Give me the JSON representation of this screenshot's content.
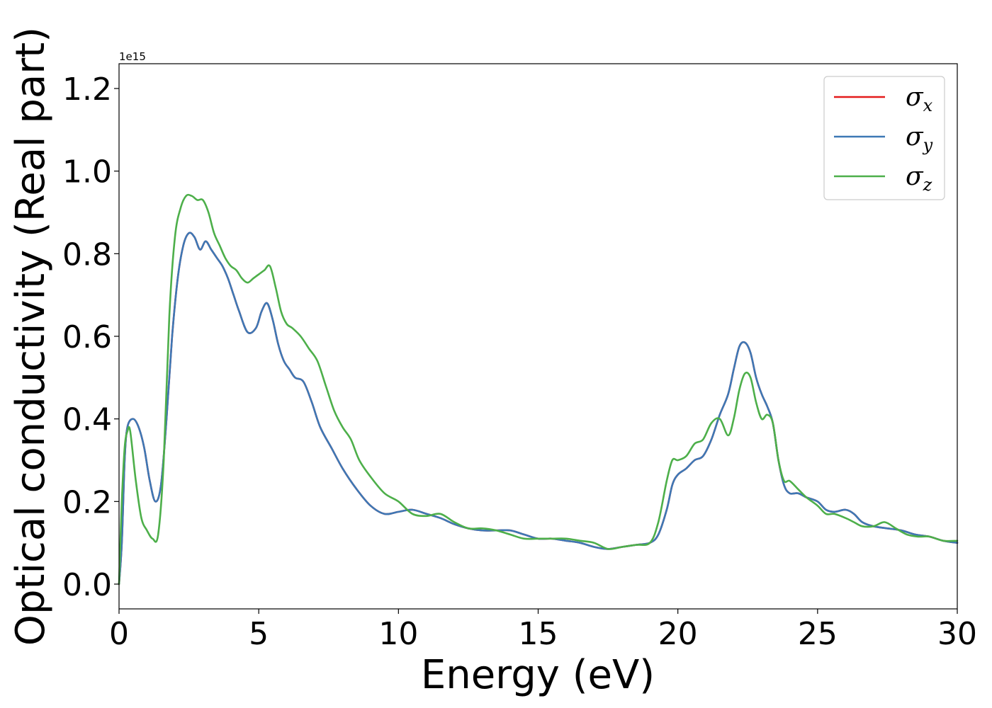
{
  "chart_data": {
    "type": "line",
    "xlabel": "Energy (eV)",
    "ylabel": "Optical conductivity (Real part)",
    "y_offset_label": "1e15",
    "xlim": [
      0,
      30
    ],
    "ylim": [
      -0.06,
      1.26
    ],
    "x_ticks": [
      "0",
      "5",
      "10",
      "15",
      "20",
      "25",
      "30"
    ],
    "y_ticks": [
      "0.0",
      "0.2",
      "0.4",
      "0.6",
      "0.8",
      "1.0",
      "1.2"
    ],
    "x_tick_values": [
      0,
      5,
      10,
      15,
      20,
      25,
      30
    ],
    "y_tick_values": [
      0.0,
      0.2,
      0.4,
      0.6,
      0.8,
      1.0,
      1.2
    ],
    "legend_position": "upper right",
    "grid": false,
    "series": [
      {
        "name": "σx",
        "symbol": "σ",
        "subscript": "x",
        "color": "#e41a1c",
        "x": [
          0,
          0.1,
          0.2,
          0.3,
          0.5,
          0.7,
          0.9,
          1.1,
          1.3,
          1.5,
          1.7,
          1.9,
          2.1,
          2.3,
          2.5,
          2.7,
          2.9,
          3.1,
          3.3,
          3.5,
          3.7,
          3.9,
          4.1,
          4.3,
          4.6,
          4.9,
          5.1,
          5.3,
          5.5,
          5.7,
          5.9,
          6.1,
          6.3,
          6.6,
          6.9,
          7.2,
          7.6,
          8.0,
          8.5,
          9.0,
          9.5,
          10.0,
          10.5,
          11.0,
          11.5,
          12.0,
          12.5,
          13.0,
          13.5,
          14.0,
          14.5,
          15.0,
          15.5,
          16.0,
          16.5,
          17.0,
          17.5,
          18.0,
          18.5,
          19.0,
          19.3,
          19.6,
          19.8,
          20.0,
          20.3,
          20.6,
          20.9,
          21.2,
          21.5,
          21.8,
          22.0,
          22.2,
          22.4,
          22.6,
          22.8,
          23.0,
          23.2,
          23.4,
          23.6,
          23.8,
          24.0,
          24.3,
          24.6,
          25.0,
          25.3,
          25.6,
          26.0,
          26.3,
          26.6,
          27.0,
          27.5,
          28.0,
          28.5,
          29.0,
          29.5,
          30.0
        ],
        "y": [
          0.0,
          0.1,
          0.3,
          0.38,
          0.4,
          0.38,
          0.33,
          0.25,
          0.2,
          0.24,
          0.4,
          0.6,
          0.74,
          0.82,
          0.85,
          0.84,
          0.81,
          0.83,
          0.81,
          0.79,
          0.77,
          0.74,
          0.7,
          0.66,
          0.61,
          0.62,
          0.66,
          0.68,
          0.64,
          0.58,
          0.54,
          0.52,
          0.5,
          0.49,
          0.44,
          0.38,
          0.33,
          0.28,
          0.23,
          0.19,
          0.17,
          0.175,
          0.18,
          0.17,
          0.16,
          0.145,
          0.135,
          0.13,
          0.13,
          0.13,
          0.12,
          0.11,
          0.11,
          0.105,
          0.1,
          0.09,
          0.085,
          0.09,
          0.095,
          0.1,
          0.12,
          0.18,
          0.24,
          0.265,
          0.28,
          0.3,
          0.31,
          0.35,
          0.41,
          0.46,
          0.52,
          0.575,
          0.585,
          0.56,
          0.5,
          0.46,
          0.43,
          0.39,
          0.3,
          0.24,
          0.22,
          0.22,
          0.21,
          0.2,
          0.18,
          0.175,
          0.18,
          0.17,
          0.15,
          0.14,
          0.135,
          0.13,
          0.12,
          0.115,
          0.105,
          0.1
        ]
      },
      {
        "name": "σy",
        "symbol": "σ",
        "subscript": "y",
        "color": "#3d78b5",
        "x": [
          0,
          0.1,
          0.2,
          0.3,
          0.5,
          0.7,
          0.9,
          1.1,
          1.3,
          1.5,
          1.7,
          1.9,
          2.1,
          2.3,
          2.5,
          2.7,
          2.9,
          3.1,
          3.3,
          3.5,
          3.7,
          3.9,
          4.1,
          4.3,
          4.6,
          4.9,
          5.1,
          5.3,
          5.5,
          5.7,
          5.9,
          6.1,
          6.3,
          6.6,
          6.9,
          7.2,
          7.6,
          8.0,
          8.5,
          9.0,
          9.5,
          10.0,
          10.5,
          11.0,
          11.5,
          12.0,
          12.5,
          13.0,
          13.5,
          14.0,
          14.5,
          15.0,
          15.5,
          16.0,
          16.5,
          17.0,
          17.5,
          18.0,
          18.5,
          19.0,
          19.3,
          19.6,
          19.8,
          20.0,
          20.3,
          20.6,
          20.9,
          21.2,
          21.5,
          21.8,
          22.0,
          22.2,
          22.4,
          22.6,
          22.8,
          23.0,
          23.2,
          23.4,
          23.6,
          23.8,
          24.0,
          24.3,
          24.6,
          25.0,
          25.3,
          25.6,
          26.0,
          26.3,
          26.6,
          27.0,
          27.5,
          28.0,
          28.5,
          29.0,
          29.5,
          30.0
        ],
        "y": [
          0.0,
          0.1,
          0.3,
          0.38,
          0.4,
          0.38,
          0.33,
          0.25,
          0.2,
          0.24,
          0.4,
          0.6,
          0.74,
          0.82,
          0.85,
          0.84,
          0.81,
          0.83,
          0.81,
          0.79,
          0.77,
          0.74,
          0.7,
          0.66,
          0.61,
          0.62,
          0.66,
          0.68,
          0.64,
          0.58,
          0.54,
          0.52,
          0.5,
          0.49,
          0.44,
          0.38,
          0.33,
          0.28,
          0.23,
          0.19,
          0.17,
          0.175,
          0.18,
          0.17,
          0.16,
          0.145,
          0.135,
          0.13,
          0.13,
          0.13,
          0.12,
          0.11,
          0.11,
          0.105,
          0.1,
          0.09,
          0.085,
          0.09,
          0.095,
          0.1,
          0.12,
          0.18,
          0.24,
          0.265,
          0.28,
          0.3,
          0.31,
          0.35,
          0.41,
          0.46,
          0.52,
          0.575,
          0.585,
          0.56,
          0.5,
          0.46,
          0.43,
          0.39,
          0.3,
          0.24,
          0.22,
          0.22,
          0.21,
          0.2,
          0.18,
          0.175,
          0.18,
          0.17,
          0.15,
          0.14,
          0.135,
          0.13,
          0.12,
          0.115,
          0.105,
          0.1
        ]
      },
      {
        "name": "σz",
        "symbol": "σ",
        "subscript": "z",
        "color": "#4daf4a",
        "x": [
          0,
          0.1,
          0.2,
          0.3,
          0.4,
          0.6,
          0.8,
          1.0,
          1.2,
          1.4,
          1.6,
          1.8,
          2.0,
          2.2,
          2.4,
          2.6,
          2.8,
          3.0,
          3.2,
          3.4,
          3.6,
          3.8,
          4.0,
          4.2,
          4.4,
          4.6,
          4.8,
          5.0,
          5.2,
          5.4,
          5.6,
          5.8,
          6.0,
          6.2,
          6.5,
          6.8,
          7.1,
          7.4,
          7.7,
          8.0,
          8.3,
          8.6,
          9.0,
          9.5,
          10.0,
          10.5,
          11.0,
          11.5,
          12.0,
          12.5,
          13.0,
          13.5,
          14.0,
          14.5,
          15.0,
          15.5,
          16.0,
          16.5,
          17.0,
          17.5,
          18.0,
          18.5,
          19.0,
          19.3,
          19.6,
          19.8,
          20.0,
          20.3,
          20.6,
          20.9,
          21.2,
          21.5,
          21.8,
          22.0,
          22.2,
          22.4,
          22.6,
          22.8,
          23.0,
          23.2,
          23.4,
          23.6,
          23.8,
          24.0,
          24.3,
          24.6,
          25.0,
          25.3,
          25.6,
          26.0,
          26.3,
          26.6,
          27.0,
          27.4,
          27.8,
          28.2,
          28.6,
          29.0,
          29.5,
          30.0
        ],
        "y": [
          0.0,
          0.2,
          0.33,
          0.37,
          0.37,
          0.25,
          0.16,
          0.13,
          0.11,
          0.12,
          0.3,
          0.65,
          0.84,
          0.91,
          0.94,
          0.94,
          0.93,
          0.93,
          0.9,
          0.85,
          0.82,
          0.79,
          0.77,
          0.76,
          0.74,
          0.73,
          0.74,
          0.75,
          0.76,
          0.77,
          0.72,
          0.66,
          0.63,
          0.62,
          0.6,
          0.57,
          0.54,
          0.48,
          0.42,
          0.38,
          0.35,
          0.3,
          0.26,
          0.22,
          0.2,
          0.17,
          0.165,
          0.17,
          0.15,
          0.135,
          0.135,
          0.13,
          0.12,
          0.11,
          0.11,
          0.11,
          0.11,
          0.105,
          0.1,
          0.085,
          0.09,
          0.095,
          0.1,
          0.15,
          0.25,
          0.3,
          0.3,
          0.31,
          0.34,
          0.35,
          0.39,
          0.4,
          0.36,
          0.4,
          0.47,
          0.51,
          0.5,
          0.44,
          0.4,
          0.41,
          0.39,
          0.3,
          0.25,
          0.25,
          0.23,
          0.21,
          0.19,
          0.17,
          0.17,
          0.16,
          0.15,
          0.14,
          0.14,
          0.15,
          0.135,
          0.12,
          0.115,
          0.115,
          0.105,
          0.105
        ]
      }
    ]
  }
}
